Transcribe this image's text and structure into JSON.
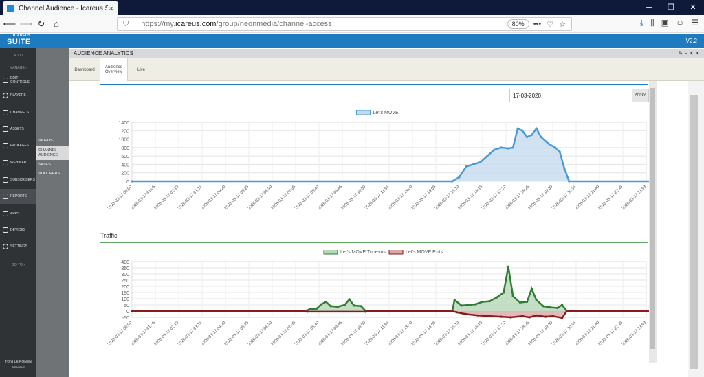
{
  "browser": {
    "tab_title": "Channel Audience - Icareus Suite",
    "url_prefix": "https://my.",
    "url_domain": "icareus.com",
    "url_path": "/group/neonmedia/channel-access",
    "zoom": "80%"
  },
  "app": {
    "logo_small": "ICAREUS",
    "logo": "SUITE",
    "version": "V2.2"
  },
  "sidebar": {
    "items": [
      {
        "label": "ADD"
      },
      {
        "label": "MANAGE"
      },
      {
        "label": "EDIT CONTROLS"
      },
      {
        "label": "PLAYERS"
      },
      {
        "label": "CHANNELS"
      },
      {
        "label": "ASSETS"
      },
      {
        "label": "PACKAGES"
      },
      {
        "label": "WEBINAR"
      },
      {
        "label": "SUBSCRIBERS"
      },
      {
        "label": "REPORTS"
      },
      {
        "label": "APPS"
      },
      {
        "label": "DEVICES"
      },
      {
        "label": "SETTINGS"
      },
      {
        "label": "GO TO"
      }
    ],
    "user_name": "TONI LEIPONEN",
    "sign_out": "SIGN OUT"
  },
  "submenu": {
    "items": [
      {
        "label": "VIDEOS"
      },
      {
        "label": "CHANNEL AUDIENCE"
      },
      {
        "label": "SALES"
      },
      {
        "label": "VOUCHERS"
      }
    ]
  },
  "panel": {
    "title": "AUDIENCE ANALYTICS",
    "actions": "✎ − ✕ ✕",
    "tabs": [
      {
        "label": "Dashboard"
      },
      {
        "label": "Audience Overview"
      },
      {
        "label": "Live"
      }
    ],
    "date_value": "17-03-2020",
    "apply_label": "APPLY",
    "traffic_title": "Traffic"
  },
  "chart_data": [
    {
      "type": "area",
      "legend": [
        "Let's MOVE"
      ],
      "ylim": [
        0,
        1400
      ],
      "yticks": [
        0,
        200,
        400,
        600,
        800,
        1000,
        1200,
        1400
      ],
      "x_ticks": [
        "2020-03-17 00:00",
        "2020-03-17 01:05",
        "2020-03-17 02:10",
        "2020-03-17 03:15",
        "2020-03-17 04:20",
        "2020-03-17 05:25",
        "2020-03-17 06:30",
        "2020-03-17 07:35",
        "2020-03-17 08:40",
        "2020-03-17 09:45",
        "2020-03-17 10:50",
        "2020-03-17 11:55",
        "2020-03-17 13:00",
        "2020-03-17 14:05",
        "2020-03-17 15:10",
        "2020-03-17 16:15",
        "2020-03-17 17:20",
        "2020-03-17 18:25",
        "2020-03-17 19:30",
        "2020-03-17 20:35",
        "2020-03-17 21:40",
        "2020-03-17 22:45",
        "2020-03-17 23:59"
      ],
      "series": [
        {
          "name": "Let's MOVE",
          "color": "#4a9bd4",
          "fill": "#c5dcef",
          "points": [
            [
              0,
              0
            ],
            [
              13.7,
              0
            ],
            [
              14,
              100
            ],
            [
              14.3,
              350
            ],
            [
              14.6,
              400
            ],
            [
              14.9,
              450
            ],
            [
              15.2,
              600
            ],
            [
              15.5,
              750
            ],
            [
              15.8,
              800
            ],
            [
              16.1,
              780
            ],
            [
              16.3,
              800
            ],
            [
              16.5,
              1250
            ],
            [
              16.7,
              1200
            ],
            [
              16.9,
              1050
            ],
            [
              17.1,
              1100
            ],
            [
              17.3,
              1250
            ],
            [
              17.5,
              1050
            ],
            [
              17.8,
              900
            ],
            [
              18.1,
              800
            ],
            [
              18.3,
              700
            ],
            [
              18.5,
              300
            ],
            [
              18.7,
              0
            ],
            [
              22.99,
              0
            ]
          ]
        }
      ]
    },
    {
      "type": "area",
      "legend": [
        "Let's MOVE Tune-ins",
        "Let's MOVE Exits"
      ],
      "ylim": [
        -50,
        400
      ],
      "yticks": [
        -50,
        0,
        50,
        100,
        150,
        200,
        250,
        300,
        350,
        400
      ],
      "x_ticks": [
        "2020-03-17 00:00",
        "2020-03-17 01:05",
        "2020-03-17 02:10",
        "2020-03-17 03:15",
        "2020-03-17 04:20",
        "2020-03-17 05:25",
        "2020-03-17 06:30",
        "2020-03-17 07:35",
        "2020-03-17 08:40",
        "2020-03-17 09:45",
        "2020-03-17 10:50",
        "2020-03-17 11:55",
        "2020-03-17 13:00",
        "2020-03-17 14:05",
        "2020-03-17 15:10",
        "2020-03-17 16:15",
        "2020-03-17 17:20",
        "2020-03-17 18:25",
        "2020-03-17 19:30",
        "2020-03-17 20:35",
        "2020-03-17 21:40",
        "2020-03-17 22:45",
        "2020-03-17 23:59"
      ],
      "series": [
        {
          "name": "Let's MOVE Tune-ins",
          "color": "#2e7d32",
          "fill": "#b7d7b9",
          "points": [
            [
              0,
              0
            ],
            [
              7.4,
              0
            ],
            [
              7.6,
              15
            ],
            [
              7.9,
              20
            ],
            [
              8.1,
              55
            ],
            [
              8.3,
              75
            ],
            [
              8.5,
              40
            ],
            [
              8.8,
              35
            ],
            [
              9.1,
              50
            ],
            [
              9.3,
              95
            ],
            [
              9.5,
              45
            ],
            [
              9.8,
              40
            ],
            [
              10,
              0
            ],
            [
              13.7,
              0
            ],
            [
              13.8,
              90
            ],
            [
              14.1,
              45
            ],
            [
              14.4,
              50
            ],
            [
              14.7,
              55
            ],
            [
              15,
              75
            ],
            [
              15.3,
              80
            ],
            [
              15.6,
              110
            ],
            [
              15.9,
              150
            ],
            [
              16.1,
              360
            ],
            [
              16.3,
              120
            ],
            [
              16.6,
              70
            ],
            [
              16.9,
              75
            ],
            [
              17.1,
              180
            ],
            [
              17.3,
              90
            ],
            [
              17.6,
              40
            ],
            [
              17.9,
              30
            ],
            [
              18.2,
              25
            ],
            [
              18.4,
              50
            ],
            [
              18.6,
              0
            ],
            [
              22.99,
              0
            ]
          ]
        },
        {
          "name": "Let's MOVE Exits",
          "color": "#8b1a1a",
          "fill": "#d9a9a9",
          "points": [
            [
              0,
              0
            ],
            [
              7.4,
              0
            ],
            [
              7.5,
              -5
            ],
            [
              10,
              -5
            ],
            [
              10.1,
              0
            ],
            [
              13.7,
              0
            ],
            [
              13.9,
              -10
            ],
            [
              14.3,
              -25
            ],
            [
              14.8,
              -35
            ],
            [
              15.3,
              -40
            ],
            [
              15.8,
              -45
            ],
            [
              16.2,
              -50
            ],
            [
              16.7,
              -40
            ],
            [
              17,
              -50
            ],
            [
              17.3,
              -35
            ],
            [
              17.7,
              -45
            ],
            [
              18,
              -40
            ],
            [
              18.4,
              -55
            ],
            [
              18.6,
              0
            ],
            [
              22.99,
              0
            ]
          ]
        }
      ]
    }
  ]
}
